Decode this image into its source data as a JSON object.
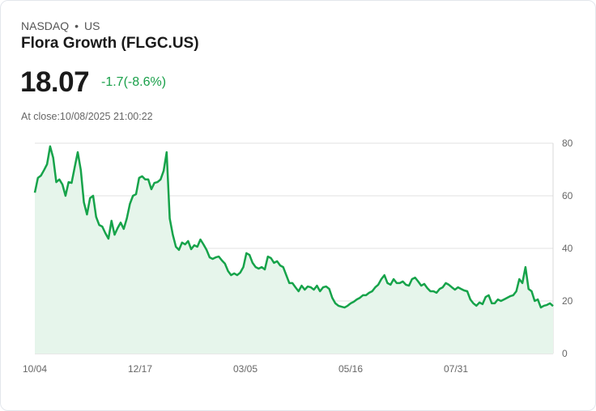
{
  "header": {
    "exchange": "NASDAQ",
    "separator": "•",
    "region": "US",
    "title": "Flora Growth (FLGC.US)",
    "price": "18.07",
    "change": "-1.7(-8.6%)",
    "close_time": "At close:10/08/2025 21:00:22"
  },
  "colors": {
    "line": "#16a34a",
    "fill": "#e6f5eb",
    "change": "#1aa04a",
    "grid": "#e2e2e2"
  },
  "chart_data": {
    "type": "area",
    "title": "Flora Growth (FLGC.US)",
    "ylim": [
      0,
      80
    ],
    "yticks": [
      "0",
      "20",
      "40",
      "60",
      "80"
    ],
    "ytick_values": [
      0,
      20,
      40,
      60,
      80
    ],
    "xticks": [
      "10/04",
      "12/17",
      "03/05",
      "05/16",
      "07/31"
    ],
    "grid": true,
    "values": [
      61.2,
      66.8,
      67.7,
      69.8,
      72,
      78.8,
      74.5,
      65.2,
      66.2,
      64.3,
      60,
      65.2,
      64.9,
      70.8,
      76.6,
      69.8,
      57.5,
      52.9,
      59.1,
      60,
      52,
      48.9,
      48.3,
      45.8,
      43.7,
      50.5,
      45.2,
      47.7,
      49.8,
      47.4,
      51.4,
      56.9,
      60,
      60.6,
      66.8,
      67.4,
      66.2,
      66.2,
      62.5,
      64.9,
      65.2,
      66.2,
      69.5,
      76.6,
      51.4,
      45.2,
      40.6,
      39.4,
      42.2,
      41.5,
      42.8,
      39.7,
      41.2,
      40.6,
      43.4,
      41.5,
      39.4,
      36.6,
      36,
      36.6,
      36.9,
      35.4,
      34.2,
      31.4,
      29.8,
      30.5,
      29.8,
      30.8,
      32.9,
      38.2,
      37.5,
      34.5,
      32.9,
      32.3,
      32.9,
      32,
      36.9,
      36.3,
      34.5,
      35.1,
      33.5,
      32.9,
      29.8,
      26.8,
      26.8,
      25.2,
      23.7,
      25.8,
      24.3,
      25.5,
      25.2,
      24.3,
      25.8,
      23.7,
      25.2,
      25.5,
      24.6,
      21.2,
      19.1,
      18.2,
      17.8,
      17.5,
      18.2,
      19.1,
      19.7,
      20.6,
      21.2,
      22.2,
      22.2,
      23.1,
      23.7,
      25.2,
      26.2,
      28.3,
      29.8,
      26.8,
      26.2,
      28.3,
      26.8,
      26.8,
      27.4,
      26.2,
      25.8,
      28.3,
      28.9,
      27.4,
      25.8,
      26.5,
      24.9,
      23.7,
      23.7,
      23.1,
      24.6,
      25.2,
      26.8,
      26.2,
      25.2,
      24.3,
      25.2,
      24.6,
      24,
      23.7,
      20.6,
      19.1,
      18.2,
      19.4,
      18.8,
      21.5,
      22.2,
      19.1,
      19.1,
      20.6,
      20,
      20.6,
      21.2,
      21.8,
      22.2,
      23.7,
      28.3,
      26.8,
      32.9,
      24.6,
      23.7,
      20,
      20.6,
      17.5,
      18.2,
      18.5,
      19.1,
      18.07
    ]
  }
}
